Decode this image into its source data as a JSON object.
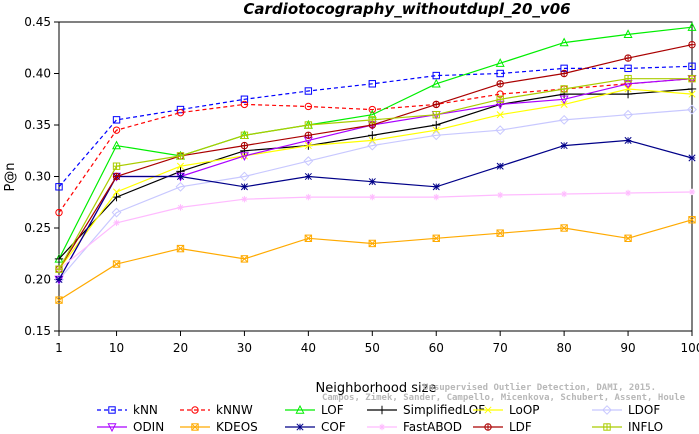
{
  "chart_data": {
    "type": "line",
    "title": "Cardiotocography_withoutdupl_20_v06",
    "xlabel": "Neighborhood size",
    "ylabel": "P@n",
    "xlim": [
      1,
      100
    ],
    "ylim": [
      0.15,
      0.45
    ],
    "xticks": [
      "1",
      "10",
      "20",
      "30",
      "40",
      "50",
      "60",
      "70",
      "80",
      "90",
      "100"
    ],
    "yticks": [
      "0.15",
      "0.20",
      "0.25",
      "0.30",
      "0.35",
      "0.40",
      "0.45"
    ],
    "legend_position": "bottom",
    "grid": false,
    "x": [
      1,
      10,
      20,
      30,
      40,
      50,
      60,
      70,
      80,
      90,
      100
    ],
    "series": [
      {
        "name": "kNN",
        "color": "#0000ff",
        "marker": "square",
        "dash": true,
        "values": [
          0.29,
          0.355,
          0.365,
          0.375,
          0.383,
          0.39,
          0.398,
          0.4,
          0.405,
          0.405,
          0.407
        ]
      },
      {
        "name": "kNNW",
        "color": "#ff0000",
        "marker": "circle",
        "dash": true,
        "values": [
          0.265,
          0.345,
          0.362,
          0.37,
          0.368,
          0.365,
          0.37,
          0.38,
          0.385,
          0.39,
          0.395
        ]
      },
      {
        "name": "LOF",
        "color": "#00ee00",
        "marker": "triangle",
        "dash": false,
        "values": [
          0.22,
          0.33,
          0.32,
          0.34,
          0.35,
          0.36,
          0.39,
          0.41,
          0.43,
          0.438,
          0.445
        ]
      },
      {
        "name": "SimplifiedLOF",
        "color": "#000000",
        "marker": "plus",
        "dash": false,
        "values": [
          0.22,
          0.28,
          0.305,
          0.325,
          0.33,
          0.34,
          0.35,
          0.37,
          0.38,
          0.38,
          0.385
        ]
      },
      {
        "name": "LoOP",
        "color": "#ffff00",
        "marker": "x",
        "dash": false,
        "values": [
          0.21,
          0.285,
          0.31,
          0.32,
          0.33,
          0.335,
          0.345,
          0.36,
          0.37,
          0.385,
          0.38
        ]
      },
      {
        "name": "LDOF",
        "color": "#c8c8ff",
        "marker": "diamond",
        "dash": false,
        "values": [
          0.2,
          0.265,
          0.29,
          0.3,
          0.315,
          0.33,
          0.34,
          0.345,
          0.355,
          0.36,
          0.365
        ]
      },
      {
        "name": "ODIN",
        "color": "#aa00ff",
        "marker": "triangle-down",
        "dash": false,
        "values": [
          0.2,
          0.3,
          0.3,
          0.32,
          0.335,
          0.35,
          0.36,
          0.37,
          0.375,
          0.39,
          0.395
        ]
      },
      {
        "name": "KDEOS",
        "color": "#ffaa00",
        "marker": "square-x",
        "dash": false,
        "values": [
          0.18,
          0.215,
          0.23,
          0.22,
          0.24,
          0.235,
          0.24,
          0.245,
          0.25,
          0.24,
          0.258
        ]
      },
      {
        "name": "COF",
        "color": "#000088",
        "marker": "star",
        "dash": false,
        "values": [
          0.2,
          0.3,
          0.3,
          0.29,
          0.3,
          0.295,
          0.29,
          0.31,
          0.33,
          0.335,
          0.318
        ]
      },
      {
        "name": "FastABOD",
        "color": "#ffbbff",
        "marker": "plus-x",
        "dash": false,
        "values": [
          0.21,
          0.255,
          0.27,
          0.278,
          0.28,
          0.28,
          0.28,
          0.282,
          0.283,
          0.284,
          0.285
        ]
      },
      {
        "name": "LDF",
        "color": "#aa0000",
        "marker": "circle-plus",
        "dash": false,
        "values": [
          0.21,
          0.3,
          0.32,
          0.33,
          0.34,
          0.35,
          0.37,
          0.39,
          0.4,
          0.415,
          0.428
        ]
      },
      {
        "name": "INFLO",
        "color": "#aacc00",
        "marker": "square-cross",
        "dash": false,
        "values": [
          0.21,
          0.31,
          0.32,
          0.34,
          0.35,
          0.355,
          0.36,
          0.375,
          0.385,
          0.395,
          0.395
        ]
      }
    ]
  },
  "watermark": {
    "line1": "Unsupervised Outlier Detection, DAMI, 2015.",
    "line2": "Campos, Zimek, Sander, Campello, Micenkova, Schubert, Assent, Houle"
  }
}
